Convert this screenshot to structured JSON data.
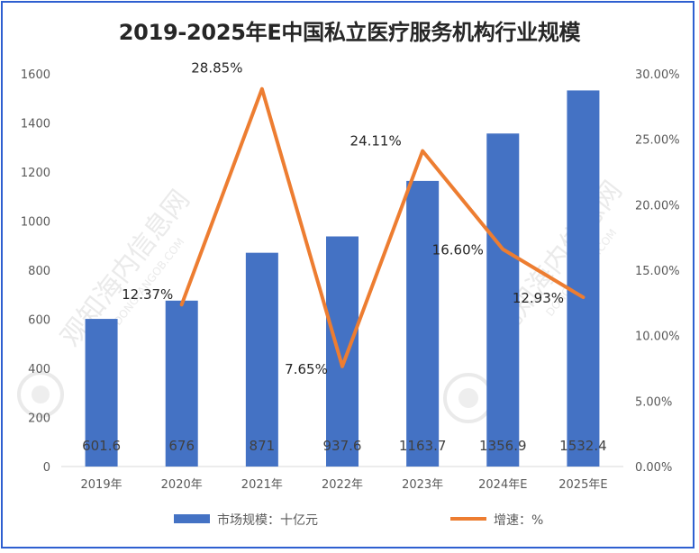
{
  "chart_data": {
    "type": "bar",
    "title": "2019-2025年E中国私立医疗服务机构行业规模",
    "categories": [
      "2019年",
      "2020年",
      "2021年",
      "2022年",
      "2023年",
      "2024年E",
      "2025年E"
    ],
    "series": [
      {
        "name": "市场规模：十亿元",
        "type": "bar",
        "axis": "left",
        "color": "#4472c4",
        "values": [
          601.6,
          676,
          871,
          937.6,
          1163.7,
          1356.9,
          1532.4
        ],
        "labels": [
          "601.6",
          "676",
          "871",
          "937.6",
          "1163.7",
          "1356.9",
          "1532.4"
        ]
      },
      {
        "name": "增速：%",
        "type": "line",
        "axis": "right",
        "color": "#ed7d31",
        "values": [
          null,
          12.37,
          28.85,
          7.65,
          24.11,
          16.6,
          12.93
        ],
        "labels": [
          "",
          "12.37%",
          "28.85%",
          "7.65%",
          "24.11%",
          "16.60%",
          "12.93%"
        ]
      }
    ],
    "y_left": {
      "ylim": [
        0,
        1600
      ],
      "ticks": [
        "0",
        "200",
        "400",
        "600",
        "800",
        "1000",
        "1200",
        "1400",
        "1600"
      ]
    },
    "y_right": {
      "ylim": [
        0,
        30
      ],
      "ticks": [
        "0.00%",
        "5.00%",
        "10.00%",
        "15.00%",
        "20.00%",
        "25.00%",
        "30.00%"
      ]
    },
    "grid": false,
    "legend_position": "bottom"
  },
  "watermark": {
    "text": "观知海内信息网",
    "subtext": "DONGFANGOB.COM"
  }
}
